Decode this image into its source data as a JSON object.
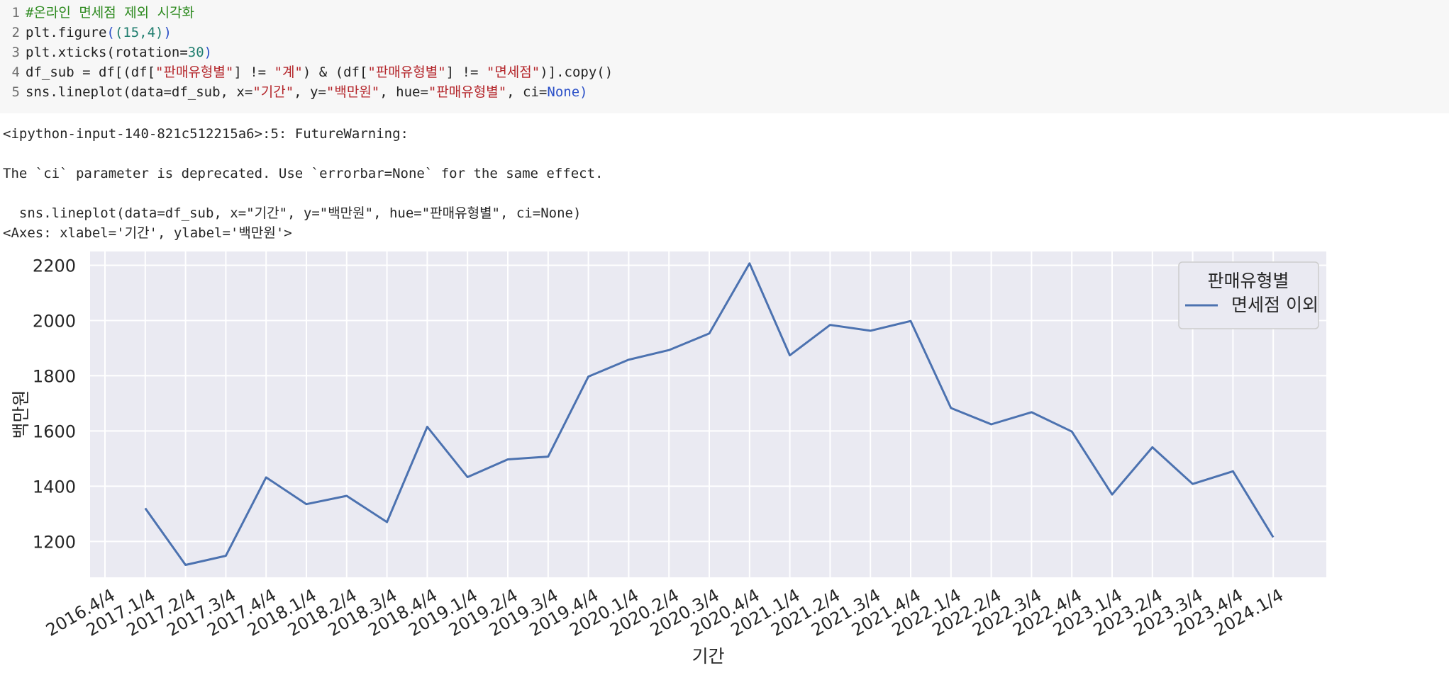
{
  "code": {
    "lines": [
      {
        "num": "1",
        "comment": "#온라인 면세점 제외 시각화"
      },
      {
        "num": "2",
        "p1": "plt.figure",
        "p2": "(",
        "n1": "(15,4)",
        "p3": ")"
      },
      {
        "num": "3",
        "p1": "plt.xticks",
        "p2": "(rotation=",
        "n1": "30",
        "p3": ")"
      },
      {
        "num": "4",
        "p1": "df_sub = df[(df[",
        "s1": "\"판매유형별\"",
        "p2": "] != ",
        "s2": "\"계\"",
        "p3": ") & (df[",
        "s3": "\"판매유형별\"",
        "p4": "] != ",
        "s4": "\"면세점\"",
        "p5": ")].copy()"
      },
      {
        "num": "5",
        "p1": "sns.lineplot",
        "p2": "(data=df_sub, x=",
        "s1": "\"기간\"",
        "p3": ", y=",
        "s2": "\"백만원\"",
        "p4": ", hue=",
        "s3": "\"판매유형별\"",
        "p5": ", ci=",
        "k1": "None",
        "p6": ")"
      }
    ]
  },
  "output": {
    "line1": "<ipython-input-140-821c512215a6>:5: FutureWarning:",
    "line2": "The `ci` parameter is deprecated. Use `errorbar=None` for the same effect.",
    "line3": "  sns.lineplot(data=df_sub, x=\"기간\", y=\"백만원\", hue=\"판매유형별\", ci=None)",
    "line4": "<Axes: xlabel='기간', ylabel='백만원'>"
  },
  "chart_data": {
    "type": "line",
    "xlabel": "기간",
    "ylabel": "백만원",
    "categories": [
      "2016.4/4",
      "2017.1/4",
      "2017.2/4",
      "2017.3/4",
      "2017.4/4",
      "2018.1/4",
      "2018.2/4",
      "2018.3/4",
      "2018.4/4",
      "2019.1/4",
      "2019.2/4",
      "2019.3/4",
      "2019.4/4",
      "2020.1/4",
      "2020.2/4",
      "2020.3/4",
      "2020.4/4",
      "2021.1/4",
      "2021.2/4",
      "2021.3/4",
      "2021.4/4",
      "2022.1/4",
      "2022.2/4",
      "2022.3/4",
      "2022.4/4",
      "2023.1/4",
      "2023.2/4",
      "2023.3/4",
      "2023.4/4",
      "2024.1/4"
    ],
    "series": [
      {
        "name": "면세점 이외",
        "color": "#4c72b0",
        "values": [
          null,
          1320,
          1115,
          1148,
          1432,
          1335,
          1365,
          1270,
          1615,
          1433,
          1497,
          1507,
          1797,
          1858,
          1893,
          1953,
          2207,
          1874,
          1984,
          1963,
          1998,
          1683,
          1624,
          1668,
          1598,
          1370,
          1541,
          1408,
          1454,
          1215
        ]
      }
    ],
    "legend": {
      "title": "판매유형별",
      "position": "top-right"
    },
    "ylim": [
      1070,
      2250
    ],
    "yticks": [
      1200,
      1400,
      1600,
      1800,
      2000,
      2200
    ],
    "grid": true,
    "background": "#eaeaf2",
    "xtick_rotation": 30
  }
}
